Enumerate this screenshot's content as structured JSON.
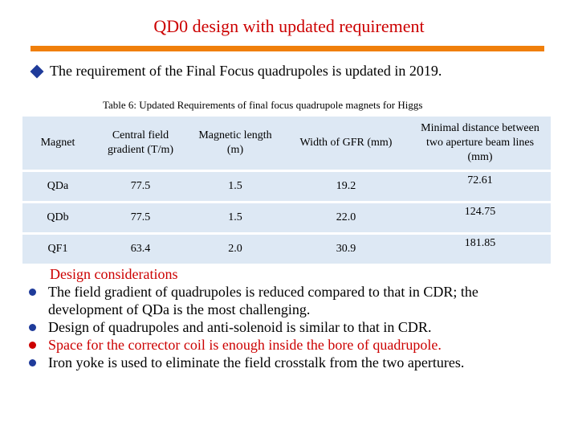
{
  "slide": {
    "title": "QD0 design with updated requirement",
    "intro": "The requirement of the Final Focus quadrupoles is updated in 2019.",
    "caption": "Table 6: Updated Requirements of final focus quadrupole magnets for Higgs"
  },
  "table": {
    "headers": [
      "Magnet",
      "Central field gradient (T/m)",
      "Magnetic length (m)",
      "Width of GFR (mm)",
      "Minimal distance between two aperture beam lines (mm)"
    ],
    "rows": [
      [
        "QDa",
        "77.5",
        "1.5",
        "19.2",
        "72.61"
      ],
      [
        "QDb",
        "77.5",
        "1.5",
        "22.0",
        "124.75"
      ],
      [
        "QF1",
        "63.4",
        "2.0",
        "30.9",
        "181.85"
      ]
    ]
  },
  "considerations": {
    "title": "Design considerations",
    "items": [
      "The field gradient of quadrupoles is reduced compared to that in CDR; the development of QDa is the most challenging.",
      "Design of quadrupoles and anti-solenoid is similar to that in CDR.",
      "Space for the corrector coil is enough inside the bore of quadrupole.",
      "Iron yoke is used to eliminate the field crosstalk from the two apertures."
    ]
  },
  "colors": {
    "title": "#cc0000",
    "rule": "#f07f0b",
    "table_fill": "#dde8f4",
    "bullet_blue": "#1f3b9a",
    "bullet_red": "#cc0000"
  }
}
